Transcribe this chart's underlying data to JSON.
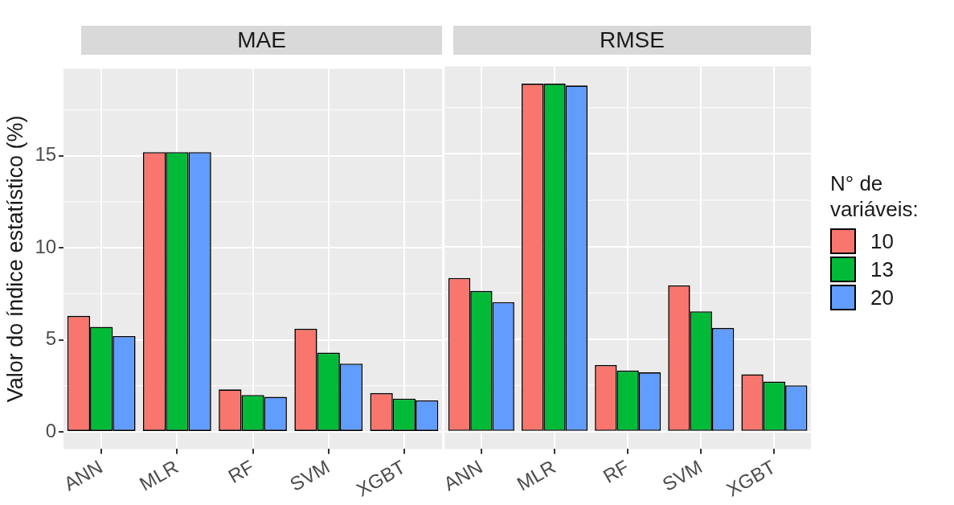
{
  "chart_data": [
    {
      "type": "bar",
      "title": "MAE",
      "ylabel": "Valor do índice estatístico (%)",
      "categories": [
        "ANN",
        "MLR",
        "RF",
        "SVM",
        "XGBT"
      ],
      "series": [
        {
          "color": "#f8766d",
          "values": [
            6.3,
            15.2,
            2.3,
            5.6,
            2.1
          ]
        },
        {
          "color": "#00ba38",
          "values": [
            5.7,
            15.2,
            2.0,
            4.3,
            1.8
          ]
        },
        {
          "color": "#619cff",
          "values": [
            5.2,
            15.2,
            1.9,
            3.7,
            1.7
          ]
        }
      ],
      "ylim": [
        -0.94,
        19.74
      ],
      "yticks": [
        0,
        5,
        10,
        15
      ],
      "grid": true,
      "legend": false
    },
    {
      "type": "bar",
      "title": "RMSE",
      "categories": [
        "ANN",
        "MLR",
        "RF",
        "SVM",
        "XGBT"
      ],
      "legend_title": "N° de variáveis:",
      "series": [
        {
          "name": "10",
          "color": "#f8766d",
          "values": [
            8.3,
            18.8,
            3.6,
            7.9,
            3.1
          ]
        },
        {
          "name": "13",
          "color": "#00ba38",
          "values": [
            7.6,
            18.8,
            3.3,
            6.5,
            2.7
          ]
        },
        {
          "name": "20",
          "color": "#619cff",
          "values": [
            7.0,
            18.7,
            3.2,
            5.6,
            2.5
          ]
        }
      ],
      "ylim": [
        -0.94,
        19.74
      ],
      "yticks": [
        0,
        5,
        10,
        15
      ],
      "grid": true,
      "legend": "right",
      "tick_labels": "x"
    }
  ]
}
